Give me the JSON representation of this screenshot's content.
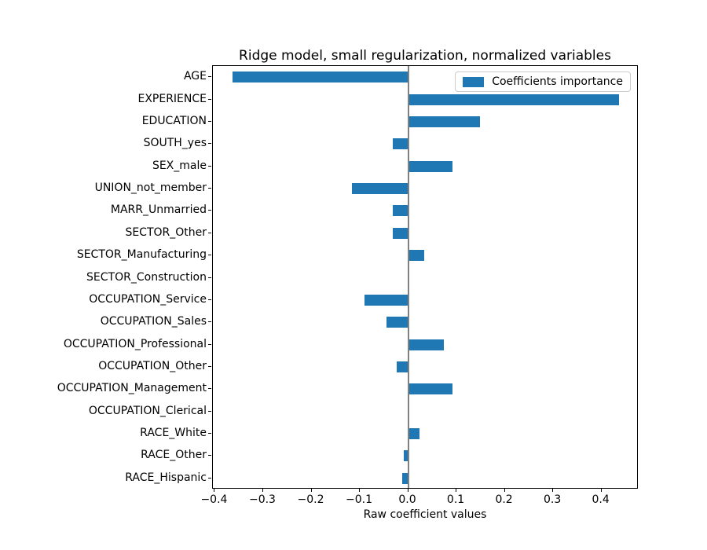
{
  "figure": {
    "title": "Ridge model, small regularization, normalized variables",
    "xlabel": "Raw coefficient values",
    "legend": {
      "label": "Coefficients importance"
    }
  },
  "chart_data": {
    "type": "bar",
    "orientation": "horizontal",
    "title": "Ridge model, small regularization, normalized variables",
    "xlabel": "Raw coefficient values",
    "ylabel": "",
    "series_name": "Coefficients importance",
    "categories": [
      "AGE",
      "EXPERIENCE",
      "EDUCATION",
      "SOUTH_yes",
      "SEX_male",
      "UNION_not_member",
      "MARR_Unmarried",
      "SECTOR_Other",
      "SECTOR_Manufacturing",
      "SECTOR_Construction",
      "OCCUPATION_Service",
      "OCCUPATION_Sales",
      "OCCUPATION_Professional",
      "OCCUPATION_Other",
      "OCCUPATION_Management",
      "OCCUPATION_Clerical",
      "RACE_White",
      "RACE_Other",
      "RACE_Hispanic"
    ],
    "values": [
      -0.364,
      0.437,
      0.148,
      -0.032,
      0.091,
      -0.117,
      -0.032,
      -0.031,
      0.033,
      0.001,
      -0.091,
      -0.045,
      0.074,
      -0.024,
      0.091,
      0.001,
      0.023,
      -0.009,
      -0.013
    ],
    "xlim": [
      -0.404,
      0.477
    ],
    "xticks": [
      -0.4,
      -0.3,
      -0.2,
      -0.1,
      0.0,
      0.1,
      0.2,
      0.3,
      0.4
    ],
    "xtick_labels": [
      "−0.4",
      "−0.3",
      "−0.2",
      "−0.1",
      "0.0",
      "0.1",
      "0.2",
      "0.3",
      "0.4"
    ],
    "grid": false,
    "legend_position": "upper right",
    "bar_color": "#1f77b4",
    "zero_line_color": "#808080"
  }
}
